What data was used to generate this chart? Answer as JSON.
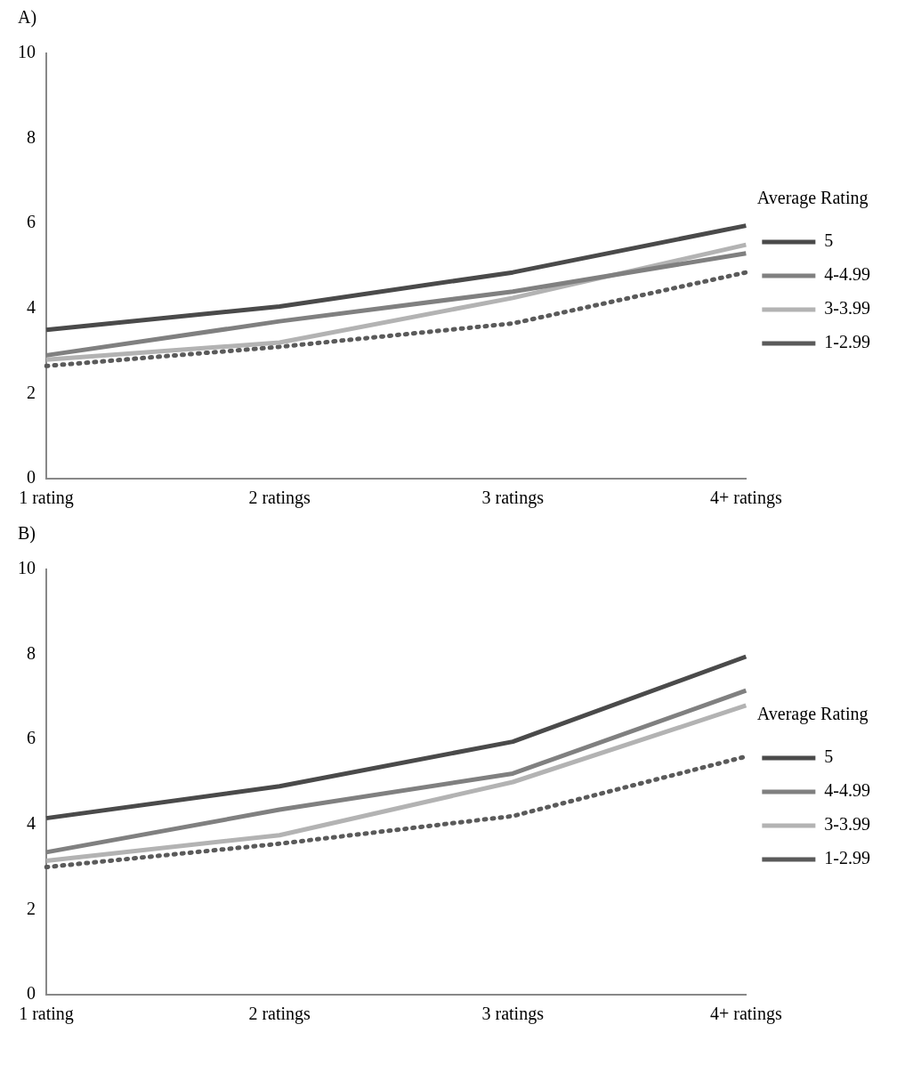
{
  "chart_data": [
    {
      "type": "line",
      "title": "A)",
      "categories": [
        "1 rating",
        "2 ratings",
        "3 ratings",
        "4+ ratings"
      ],
      "legend_title": "Average Rating",
      "legend": "right",
      "grid": false,
      "marker": "none",
      "ylim": [
        0,
        10
      ],
      "yticks": [
        0,
        2,
        4,
        6,
        8,
        10
      ],
      "series": [
        {
          "name": "5",
          "color": "#4a4a4a",
          "values": [
            3.5,
            4.05,
            4.85,
            5.95
          ]
        },
        {
          "name": "4-4.99",
          "color": "#808080",
          "values": [
            2.9,
            3.7,
            4.4,
            5.3
          ]
        },
        {
          "name": "3-3.99",
          "color": "#b3b3b3",
          "values": [
            2.8,
            3.2,
            4.25,
            5.5
          ]
        },
        {
          "name": "1-2.99",
          "color": "#5a5a5a",
          "line_style": "dotted",
          "values": [
            2.65,
            3.1,
            3.65,
            4.85
          ]
        }
      ]
    },
    {
      "type": "line",
      "title": "B)",
      "categories": [
        "1 rating",
        "2 ratings",
        "3 ratings",
        "4+ ratings"
      ],
      "legend_title": "Average Rating",
      "legend": "right",
      "grid": false,
      "marker": "none",
      "ylim": [
        0,
        10
      ],
      "yticks": [
        0,
        2,
        4,
        6,
        8,
        10
      ],
      "series": [
        {
          "name": "5",
          "color": "#4a4a4a",
          "values": [
            4.15,
            4.9,
            5.95,
            7.95
          ]
        },
        {
          "name": "4-4.99",
          "color": "#808080",
          "values": [
            3.35,
            4.35,
            5.2,
            7.15
          ]
        },
        {
          "name": "3-3.99",
          "color": "#b3b3b3",
          "values": [
            3.15,
            3.75,
            5.0,
            6.8
          ]
        },
        {
          "name": "1-2.99",
          "color": "#5a5a5a",
          "line_style": "dotted",
          "values": [
            3.0,
            3.55,
            4.2,
            5.6
          ]
        }
      ]
    }
  ]
}
